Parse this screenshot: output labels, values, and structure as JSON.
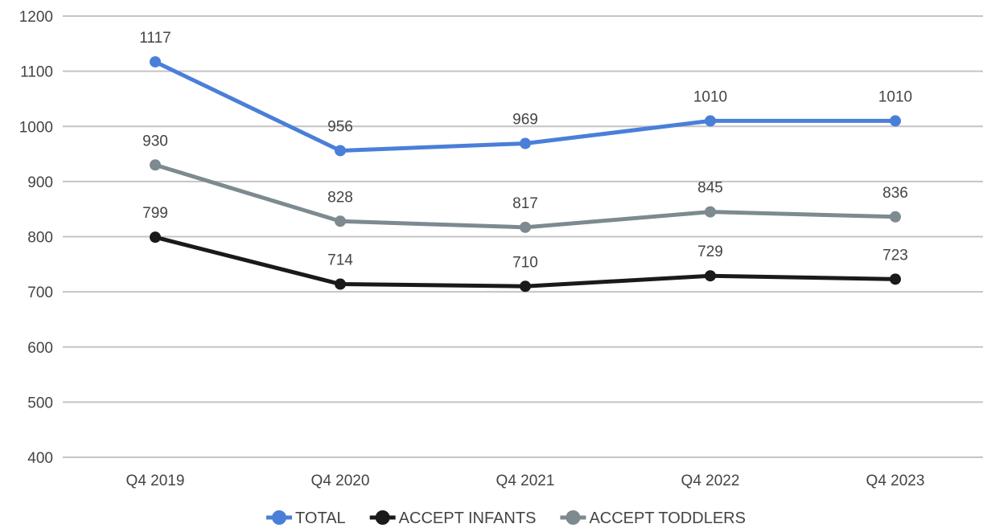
{
  "chart_data": {
    "type": "line",
    "categories": [
      "Q4 2019",
      "Q4 2020",
      "Q4 2021",
      "Q4 2022",
      "Q4 2023"
    ],
    "series": [
      {
        "name": "TOTAL",
        "values": [
          1117,
          956,
          969,
          1010,
          1010
        ],
        "color": "#4a7fd9"
      },
      {
        "name": "ACCEPT INFANTS",
        "values": [
          799,
          714,
          710,
          729,
          723
        ],
        "color": "#1a1a1a"
      },
      {
        "name": "ACCEPT TODDLERS",
        "values": [
          930,
          828,
          817,
          845,
          836
        ],
        "color": "#7d8a90"
      }
    ],
    "ylim": [
      400,
      1200
    ],
    "yticks": [
      400,
      500,
      600,
      700,
      800,
      900,
      1000,
      1100,
      1200
    ],
    "grid": true,
    "legend": "bottom",
    "data_labels": true
  }
}
